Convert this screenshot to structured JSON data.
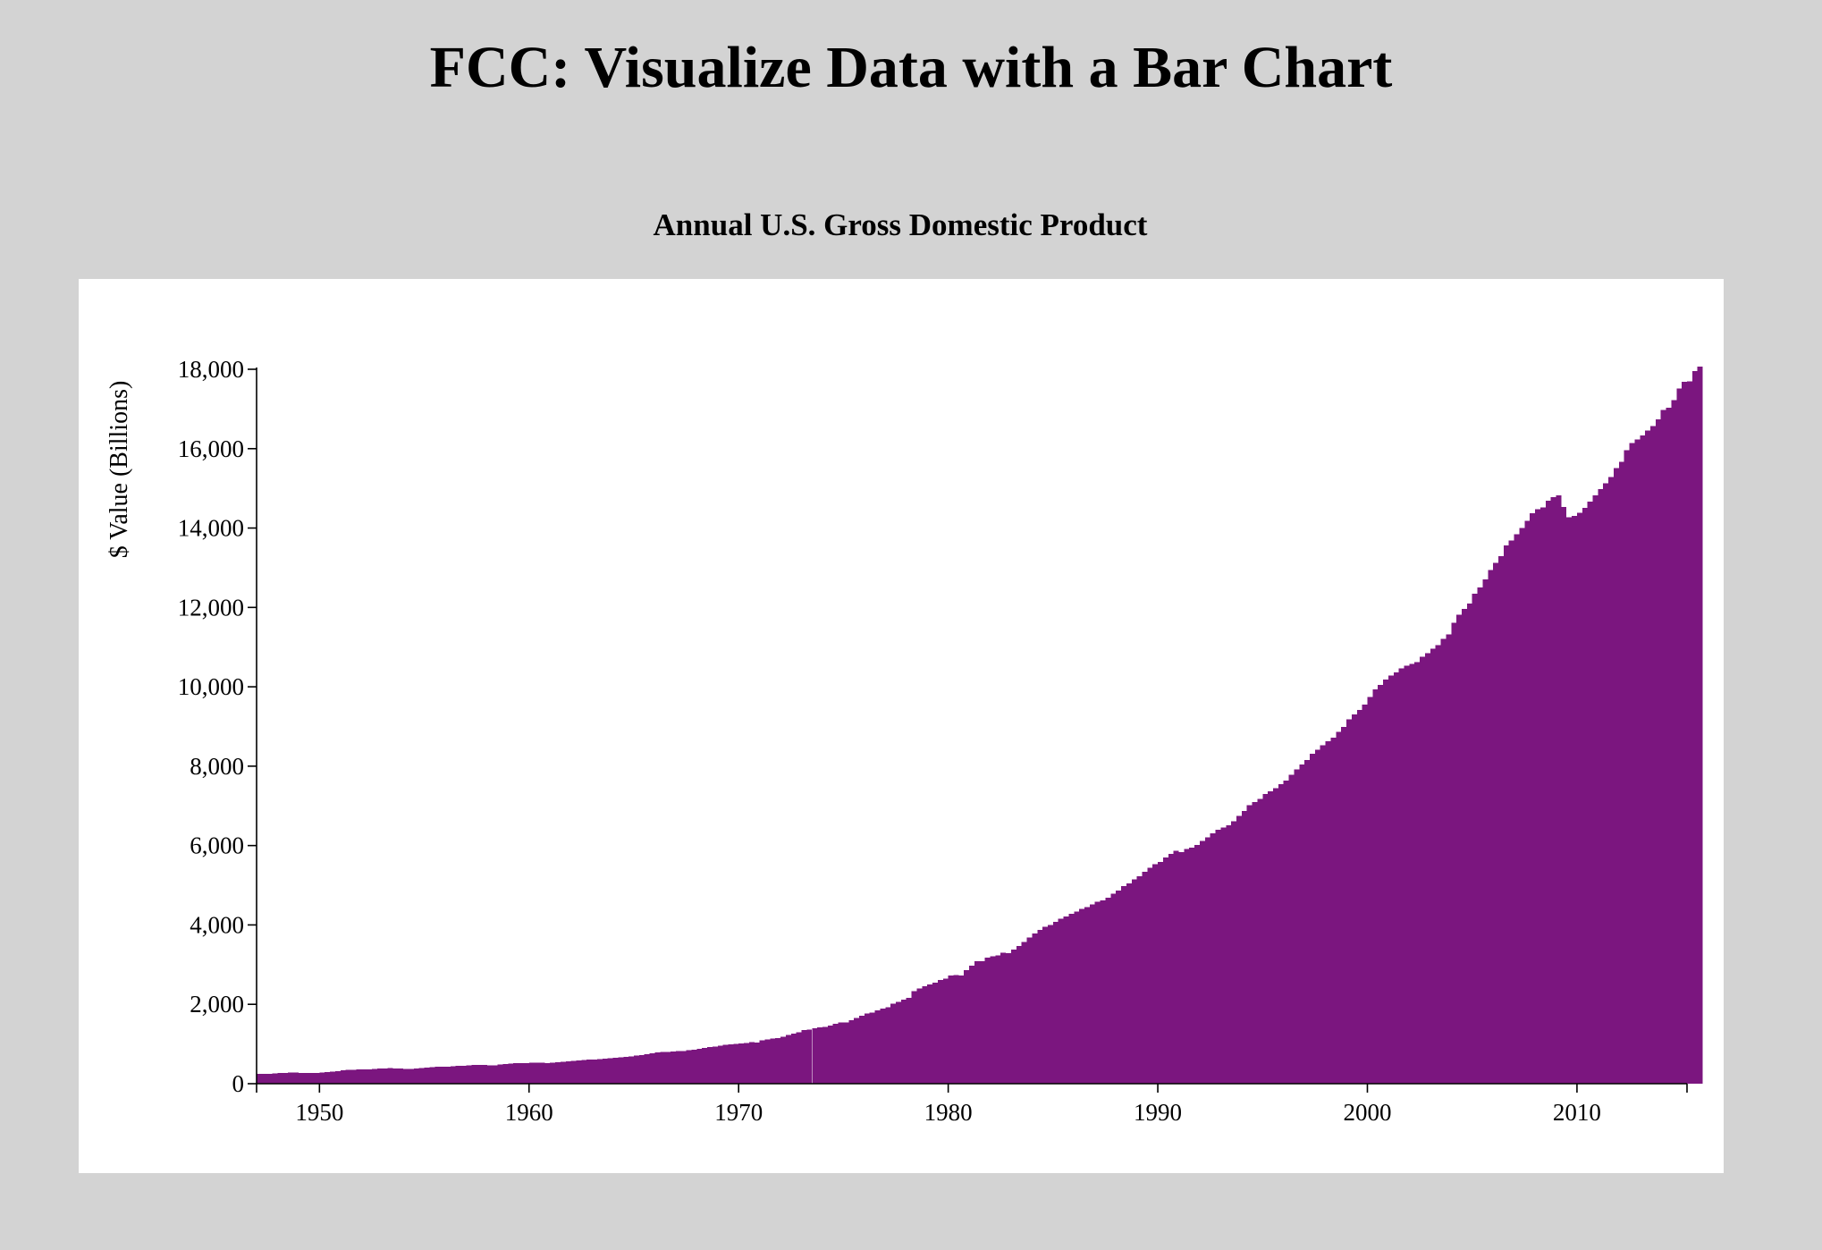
{
  "page": {
    "title": "FCC: Visualize Data with a Bar Chart"
  },
  "colors": {
    "background": "#d3d3d3",
    "card": "#ffffff",
    "bar": "#7b167f",
    "axis": "#000000"
  },
  "chart_data": {
    "type": "bar",
    "title": "Annual U.S. Gross Domestic Product",
    "ylabel": "$ Value (Billions)",
    "xlabel": "",
    "xlim": [
      1947,
      2015.25
    ],
    "ylim": [
      0,
      18000
    ],
    "x_ticks": [
      "1950",
      "1960",
      "1970",
      "1980",
      "1990",
      "2000",
      "2010"
    ],
    "y_ticks": [
      "0",
      "2,000",
      "4,000",
      "6,000",
      "8,000",
      "10,000",
      "12,000",
      "14,000",
      "16,000",
      "18,000"
    ],
    "grid": false,
    "legend": "none",
    "series": [
      {
        "start_year": 1947,
        "frequency": "quarterly",
        "annual_values": {
          "1947": 243,
          "1948": 269,
          "1949": 272,
          "1950": 293,
          "1951": 339,
          "1952": 358,
          "1953": 379,
          "1954": 380,
          "1955": 414,
          "1956": 437,
          "1957": 461,
          "1958": 467,
          "1959": 506,
          "1960": 526,
          "1961": 544,
          "1962": 585,
          "1963": 617,
          "1964": 664,
          "1965": 720,
          "1966": 788,
          "1967": 832,
          "1968": 910,
          "1969": 985,
          "1970": 1038,
          "1971": 1127,
          "1972": 1238,
          "1973": 1382,
          "1974": 1500,
          "1975": 1638,
          "1976": 1825,
          "1977": 2030,
          "1978": 2294,
          "1979": 2563,
          "1980": 2789,
          "1981": 3128,
          "1982": 3255,
          "1983": 3536,
          "1984": 3933,
          "1985": 4220,
          "1986": 4463,
          "1987": 4740,
          "1988": 5104,
          "1989": 5484,
          "1990": 5800,
          "1991": 5992,
          "1992": 6342,
          "1993": 6667,
          "1994": 7085,
          "1995": 7415,
          "1996": 7839,
          "1997": 8332,
          "1998": 8794,
          "1999": 9354,
          "2000": 9952,
          "2001": 10286,
          "2002": 10642,
          "2003": 11142,
          "2004": 11853,
          "2005": 12623,
          "2006": 13377,
          "2007": 14028,
          "2008": 14292,
          "2009": 13974,
          "2010": 14499,
          "2011": 15076,
          "2012": 15543,
          "2013": 16228,
          "2014": 16830,
          "2015": 17700
        },
        "values": [
          243.1,
          246.3,
          250.1,
          260.3,
          266.2,
          272.9,
          279.5,
          280.7,
          275.4,
          271.7,
          273.3,
          271.0,
          281.2,
          290.7,
          308.5,
          320.3,
          336.4,
          344.5,
          351.8,
          356.6,
          360.2,
          361.4,
          368.1,
          381.2,
          388.5,
          390.5,
          385.9,
          378.9,
          375.0,
          375.3,
          380.4,
          391.2,
          406.5,
          416.4,
          425.5,
          431.0,
          432.3,
          440.5,
          445.5,
          455.1,
          465.1,
          470.0,
          476.5,
          472.9,
          462.6,
          465.5,
          480.4,
          496.4,
          512.6,
          517.6,
          518.1,
          522.1,
          533.9,
          526.2,
          528.1,
          521.7,
          526.9,
          538.5,
          552.1,
          565.5,
          578.5,
          588.2,
          596.2,
          604.0,
          609.4,
          619.7,
          632.6,
          639.3,
          654.9,
          666.4,
          675.1,
          685.1,
          705.4,
          723.2,
          740.3,
          762.3,
          784.4,
          796.2,
          805.0,
          813.7,
          817.1,
          826.4,
          842.0,
          856.6,
          883.7,
          906.3,
          926.0,
          934.8,
          958.4,
          976.4,
          993.8,
          1002.4,
          1009.6,
          1026.0,
          1044.9,
          1040.8,
          1090.2,
          1113.2,
          1134.1,
          1151.6,
          1187.0,
          1225.0,
          1256.7,
          1295.4,
          1346.9,
          1367.3,
          1392.5,
          1423.6,
          1433.3,
          1466.1,
          1507.4,
          1541.6,
          1541.8,
          1596.9,
          1657.3,
          1717.3,
          1769.2,
          1795.1,
          1848.6,
          1886.9,
          1930.2,
          2015.7,
          2058.5,
          2115.1,
          2166.7,
          2329.8,
          2395.0,
          2458.7,
          2495.4,
          2543.6,
          2616.7,
          2649.3,
          2722.9,
          2736.1,
          2729.6,
          2860.6,
          2971.8,
          3089.1,
          3081.9,
          3178.1,
          3214.8,
          3235.1,
          3296.7,
          3289.8,
          3383.3,
          3472.1,
          3567.2,
          3682.5,
          3790.3,
          3872.1,
          3958.6,
          3999.7,
          4072.8,
          4153.0,
          4208.7,
          4285.7,
          4338.0,
          4400.9,
          4451.8,
          4512.5,
          4584.0,
          4621.7,
          4688.5,
          4787.1,
          4861.7,
          4984.0,
          5049.1,
          5151.8,
          5229.9,
          5336.0,
          5443.0,
          5525.3,
          5581.5,
          5695.2,
          5792.2,
          5864.3,
          5840.5,
          5913.6,
          5949.0,
          6010.3,
          6120.5,
          6201.2,
          6303.7,
          6399.2,
          6457.8,
          6506.7,
          6606.8,
          6744.2,
          6868.4,
          7016.6,
          7097.2,
          7174.8,
          7303.9,
          7364.5,
          7443.5,
          7550.1,
          7637.0,
          7781.4,
          7919.1,
          8044.5,
          8155.7,
          8309.1,
          8413.4,
          8525.9,
          8629.5,
          8719.7,
          8867.5,
          8993.1,
          9183.8,
          9304.8,
          9416.5,
          9550.4,
          9742.7,
          9930.8,
          10049.0,
          10180.7,
          10284.4,
          10363.6,
          10466.8,
          10537.4,
          10578.8,
          10617.9,
          10762.6,
          10849.3,
          10961.7,
          11048.9,
          11209.2,
          11320.8,
          11612.8,
          11816.8,
          11964.6,
          12094.4,
          12350.6,
          12505.4,
          12711.1,
          12940.7,
          13126.2,
          13295.3,
          13565.4,
          13691.5,
          13838.4,
          14006.5,
          14180.4,
          14378.5,
          14469.3,
          14519.3,
          14691.9,
          14780.3,
          14820.4,
          14530.5,
          14277.3,
          14301.9,
          14380.6,
          14511.3,
          14667.6,
          14824.4,
          14983.9,
          15129.1,
          15288.5,
          15507.5,
          15671.4,
          15963.9,
          16143.2,
          16233.9,
          16336.8,
          16458.2,
          16574.4,
          16733.9,
          16971.4,
          17034.3,
          17226.3,
          17519.9,
          17688.4,
          17691.4,
          17953.4,
          18064.7
        ]
      }
    ]
  }
}
